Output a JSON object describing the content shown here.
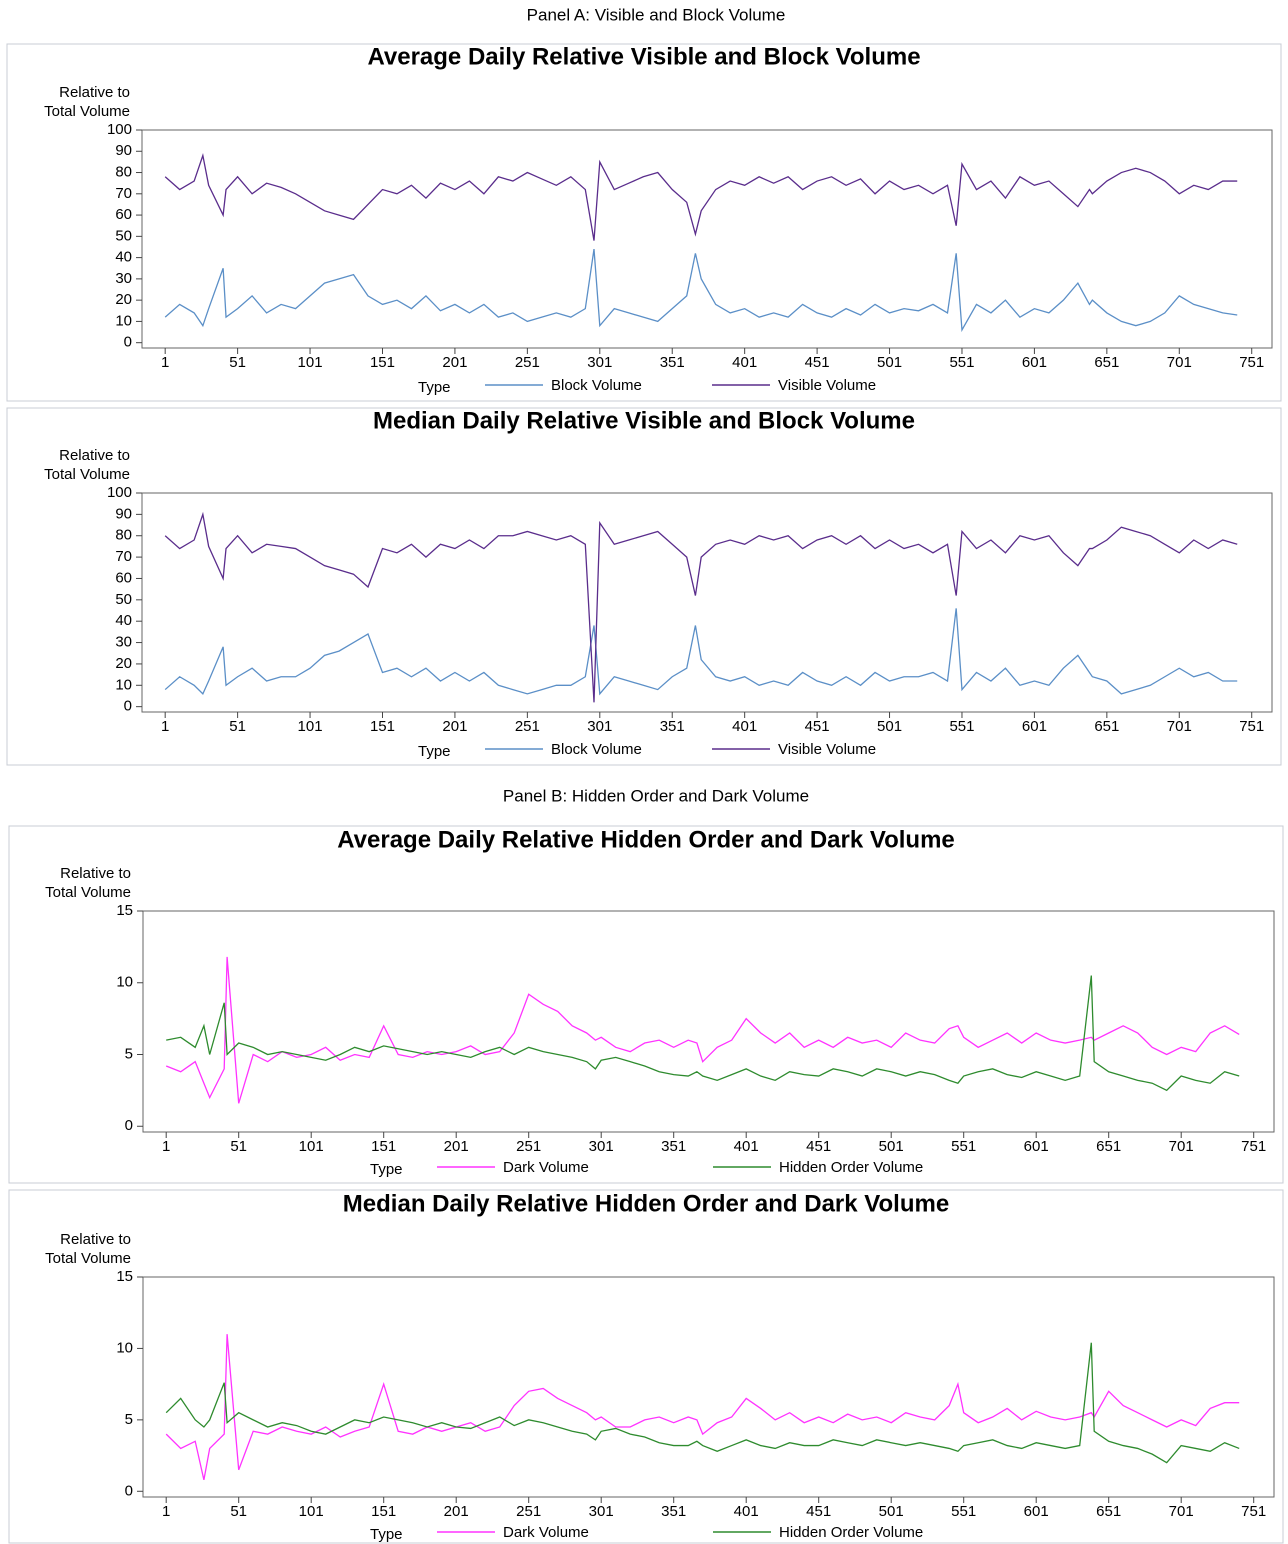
{
  "panel_titles": [
    "Panel A: Visible and Block Volume",
    "Panel B: Hidden Order and Dark Volume"
  ],
  "chart_data": [
    {
      "type": "line",
      "title": "Average Daily Relative Visible and Block Volume",
      "ylabel_lines": [
        "Relative to",
        "Total Volume"
      ],
      "legend_title": "Type",
      "x": [
        1,
        11,
        21,
        27,
        31,
        41,
        43,
        51,
        61,
        71,
        81,
        91,
        101,
        111,
        121,
        131,
        141,
        151,
        161,
        171,
        181,
        191,
        201,
        211,
        221,
        231,
        241,
        251,
        261,
        271,
        281,
        291,
        297,
        301,
        311,
        321,
        331,
        341,
        351,
        361,
        367,
        371,
        381,
        391,
        401,
        411,
        421,
        431,
        441,
        451,
        461,
        471,
        481,
        491,
        501,
        511,
        521,
        531,
        541,
        547,
        551,
        561,
        571,
        581,
        591,
        601,
        611,
        621,
        631,
        639,
        641,
        651,
        661,
        671,
        681,
        691,
        701,
        711,
        721,
        731,
        741
      ],
      "xlim": [
        -15,
        765
      ],
      "xticks": [
        1,
        51,
        101,
        151,
        201,
        251,
        301,
        351,
        401,
        451,
        501,
        551,
        601,
        651,
        701,
        751
      ],
      "ylim": [
        -2.5,
        100
      ],
      "yticks": [
        0,
        10,
        20,
        30,
        40,
        50,
        60,
        70,
        80,
        90,
        100
      ],
      "series": [
        {
          "name": "Block Volume",
          "color": "#5b8fc7",
          "values": [
            12,
            18,
            14,
            8,
            16,
            35,
            12,
            16,
            22,
            14,
            18,
            16,
            22,
            28,
            30,
            32,
            22,
            18,
            20,
            16,
            22,
            15,
            18,
            14,
            18,
            12,
            14,
            10,
            12,
            14,
            12,
            16,
            44,
            8,
            16,
            14,
            12,
            10,
            16,
            22,
            42,
            30,
            18,
            14,
            16,
            12,
            14,
            12,
            18,
            14,
            12,
            16,
            13,
            18,
            14,
            16,
            15,
            18,
            14,
            42,
            6,
            18,
            14,
            20,
            12,
            16,
            14,
            20,
            28,
            18,
            20,
            14,
            10,
            8,
            10,
            14,
            22,
            18,
            16,
            14,
            13
          ]
        },
        {
          "name": "Visible Volume",
          "color": "#5a2d8c",
          "values": [
            78,
            72,
            76,
            88,
            74,
            60,
            72,
            78,
            70,
            75,
            73,
            70,
            66,
            62,
            60,
            58,
            65,
            72,
            70,
            74,
            68,
            75,
            72,
            76,
            70,
            78,
            76,
            80,
            77,
            74,
            78,
            72,
            48,
            85,
            72,
            75,
            78,
            80,
            72,
            66,
            51,
            62,
            72,
            76,
            74,
            78,
            75,
            78,
            72,
            76,
            78,
            74,
            77,
            70,
            76,
            72,
            74,
            70,
            74,
            55,
            84,
            72,
            76,
            68,
            78,
            74,
            76,
            70,
            64,
            72,
            70,
            76,
            80,
            82,
            80,
            76,
            70,
            74,
            72,
            76,
            76
          ]
        }
      ]
    },
    {
      "type": "line",
      "title": "Median Daily Relative Visible and Block Volume",
      "ylabel_lines": [
        "Relative to",
        "Total Volume"
      ],
      "legend_title": "Type",
      "x": [
        1,
        11,
        21,
        27,
        31,
        41,
        43,
        51,
        61,
        71,
        81,
        91,
        101,
        111,
        121,
        131,
        141,
        151,
        161,
        171,
        181,
        191,
        201,
        211,
        221,
        231,
        241,
        251,
        261,
        271,
        281,
        291,
        297,
        301,
        311,
        321,
        331,
        341,
        351,
        361,
        367,
        371,
        381,
        391,
        401,
        411,
        421,
        431,
        441,
        451,
        461,
        471,
        481,
        491,
        501,
        511,
        521,
        531,
        541,
        547,
        551,
        561,
        571,
        581,
        591,
        601,
        611,
        621,
        631,
        639,
        641,
        651,
        661,
        671,
        681,
        691,
        701,
        711,
        721,
        731,
        741
      ],
      "xlim": [
        -15,
        765
      ],
      "xticks": [
        1,
        51,
        101,
        151,
        201,
        251,
        301,
        351,
        401,
        451,
        501,
        551,
        601,
        651,
        701,
        751
      ],
      "ylim": [
        -2.5,
        100
      ],
      "yticks": [
        0,
        10,
        20,
        30,
        40,
        50,
        60,
        70,
        80,
        90,
        100
      ],
      "series": [
        {
          "name": "Block Volume",
          "color": "#5b8fc7",
          "values": [
            8,
            14,
            10,
            6,
            12,
            28,
            10,
            14,
            18,
            12,
            14,
            14,
            18,
            24,
            26,
            30,
            34,
            16,
            18,
            14,
            18,
            12,
            16,
            12,
            16,
            10,
            8,
            6,
            8,
            10,
            10,
            14,
            38,
            6,
            14,
            12,
            10,
            8,
            14,
            18,
            38,
            22,
            14,
            12,
            14,
            10,
            12,
            10,
            16,
            12,
            10,
            14,
            10,
            16,
            12,
            14,
            14,
            16,
            12,
            46,
            8,
            16,
            12,
            18,
            10,
            12,
            10,
            18,
            24,
            16,
            14,
            12,
            6,
            8,
            10,
            14,
            18,
            14,
            16,
            12,
            12
          ]
        },
        {
          "name": "Visible Volume",
          "color": "#5a2d8c",
          "values": [
            80,
            74,
            78,
            90,
            75,
            60,
            74,
            80,
            72,
            76,
            75,
            74,
            70,
            66,
            64,
            62,
            56,
            74,
            72,
            76,
            70,
            76,
            74,
            78,
            74,
            80,
            80,
            82,
            80,
            78,
            80,
            76,
            2,
            86,
            76,
            78,
            80,
            82,
            76,
            70,
            52,
            70,
            76,
            78,
            76,
            80,
            78,
            80,
            74,
            78,
            80,
            76,
            80,
            74,
            78,
            74,
            76,
            72,
            76,
            52,
            82,
            74,
            78,
            72,
            80,
            78,
            80,
            72,
            66,
            74,
            74,
            78,
            84,
            82,
            80,
            76,
            72,
            78,
            74,
            78,
            76
          ]
        }
      ]
    },
    {
      "type": "line",
      "title": "Average Daily Relative Hidden Order and Dark Volume",
      "ylabel_lines": [
        "Relative to",
        "Total Volume"
      ],
      "legend_title": "Type",
      "x": [
        1,
        11,
        21,
        27,
        31,
        41,
        43,
        51,
        61,
        71,
        81,
        91,
        101,
        111,
        121,
        131,
        141,
        151,
        161,
        171,
        181,
        191,
        201,
        211,
        221,
        231,
        241,
        251,
        261,
        271,
        281,
        291,
        297,
        301,
        311,
        321,
        331,
        341,
        351,
        361,
        367,
        371,
        381,
        391,
        401,
        411,
        421,
        431,
        441,
        451,
        461,
        471,
        481,
        491,
        501,
        511,
        521,
        531,
        541,
        547,
        551,
        561,
        571,
        581,
        591,
        601,
        611,
        621,
        631,
        639,
        641,
        651,
        661,
        671,
        681,
        691,
        701,
        711,
        721,
        731,
        741
      ],
      "xlim": [
        -15,
        765
      ],
      "xticks": [
        1,
        51,
        101,
        151,
        201,
        251,
        301,
        351,
        401,
        451,
        501,
        551,
        601,
        651,
        701,
        751
      ],
      "ylim": [
        -0.4,
        15
      ],
      "yticks": [
        0,
        5,
        10,
        15
      ],
      "series": [
        {
          "name": "Dark Volume",
          "color": "#ff33ff",
          "values": [
            4.2,
            3.8,
            4.5,
            3.0,
            2.0,
            4.0,
            11.8,
            1.6,
            5.0,
            4.5,
            5.2,
            4.8,
            5.0,
            5.5,
            4.6,
            5.0,
            4.8,
            7.0,
            5.0,
            4.8,
            5.2,
            5.0,
            5.2,
            5.6,
            5.0,
            5.2,
            6.5,
            9.2,
            8.5,
            8.0,
            7.0,
            6.5,
            6.0,
            6.2,
            5.5,
            5.2,
            5.8,
            6.0,
            5.5,
            6.0,
            5.8,
            4.5,
            5.5,
            6.0,
            7.5,
            6.5,
            5.8,
            6.5,
            5.5,
            6.0,
            5.5,
            6.2,
            5.8,
            6.0,
            5.5,
            6.5,
            6.0,
            5.8,
            6.8,
            7.0,
            6.2,
            5.5,
            6.0,
            6.5,
            5.8,
            6.5,
            6.0,
            5.8,
            6.0,
            6.2,
            6.0,
            6.5,
            7.0,
            6.5,
            5.5,
            5.0,
            5.5,
            5.2,
            6.5,
            7.0,
            6.4
          ]
        },
        {
          "name": "Hidden Order Volume",
          "color": "#2e8b2e",
          "values": [
            6.0,
            6.2,
            5.5,
            7.0,
            5.0,
            8.6,
            5.0,
            5.8,
            5.5,
            5.0,
            5.2,
            5.0,
            4.8,
            4.6,
            5.0,
            5.5,
            5.2,
            5.6,
            5.4,
            5.2,
            5.0,
            5.2,
            5.0,
            4.8,
            5.2,
            5.5,
            5.0,
            5.5,
            5.2,
            5.0,
            4.8,
            4.5,
            4.0,
            4.6,
            4.8,
            4.5,
            4.2,
            3.8,
            3.6,
            3.5,
            3.8,
            3.5,
            3.2,
            3.6,
            4.0,
            3.5,
            3.2,
            3.8,
            3.6,
            3.5,
            4.0,
            3.8,
            3.5,
            4.0,
            3.8,
            3.5,
            3.8,
            3.6,
            3.2,
            3.0,
            3.5,
            3.8,
            4.0,
            3.6,
            3.4,
            3.8,
            3.5,
            3.2,
            3.5,
            10.5,
            4.5,
            3.8,
            3.5,
            3.2,
            3.0,
            2.5,
            3.5,
            3.2,
            3.0,
            3.8,
            3.5
          ]
        }
      ]
    },
    {
      "type": "line",
      "title": "Median Daily Relative Hidden Order and Dark Volume",
      "ylabel_lines": [
        "Relative to",
        "Total Volume"
      ],
      "legend_title": "Type",
      "x": [
        1,
        11,
        21,
        27,
        31,
        41,
        43,
        51,
        61,
        71,
        81,
        91,
        101,
        111,
        121,
        131,
        141,
        151,
        161,
        171,
        181,
        191,
        201,
        211,
        221,
        231,
        241,
        251,
        261,
        271,
        281,
        291,
        297,
        301,
        311,
        321,
        331,
        341,
        351,
        361,
        367,
        371,
        381,
        391,
        401,
        411,
        421,
        431,
        441,
        451,
        461,
        471,
        481,
        491,
        501,
        511,
        521,
        531,
        541,
        547,
        551,
        561,
        571,
        581,
        591,
        601,
        611,
        621,
        631,
        639,
        641,
        651,
        661,
        671,
        681,
        691,
        701,
        711,
        721,
        731,
        741
      ],
      "xlim": [
        -15,
        765
      ],
      "xticks": [
        1,
        51,
        101,
        151,
        201,
        251,
        301,
        351,
        401,
        451,
        501,
        551,
        601,
        651,
        701,
        751
      ],
      "ylim": [
        -0.4,
        15
      ],
      "yticks": [
        0,
        5,
        10,
        15
      ],
      "series": [
        {
          "name": "Dark Volume",
          "color": "#ff33ff",
          "values": [
            4.0,
            3.0,
            3.5,
            0.8,
            3.0,
            4.0,
            11.0,
            1.5,
            4.2,
            4.0,
            4.5,
            4.2,
            4.0,
            4.5,
            3.8,
            4.2,
            4.5,
            7.5,
            4.2,
            4.0,
            4.5,
            4.2,
            4.5,
            4.8,
            4.2,
            4.5,
            6.0,
            7.0,
            7.2,
            6.5,
            6.0,
            5.5,
            5.0,
            5.2,
            4.5,
            4.5,
            5.0,
            5.2,
            4.8,
            5.2,
            5.0,
            4.0,
            4.8,
            5.2,
            6.5,
            5.8,
            5.0,
            5.5,
            4.8,
            5.2,
            4.8,
            5.4,
            5.0,
            5.2,
            4.8,
            5.5,
            5.2,
            5.0,
            6.0,
            7.5,
            5.5,
            4.8,
            5.2,
            5.8,
            5.0,
            5.6,
            5.2,
            5.0,
            5.2,
            5.5,
            5.2,
            7.0,
            6.0,
            5.5,
            5.0,
            4.5,
            5.0,
            4.6,
            5.8,
            6.2,
            6.2
          ]
        },
        {
          "name": "Hidden Order Volume",
          "color": "#2e8b2e",
          "values": [
            5.5,
            6.5,
            5.0,
            4.5,
            5.0,
            7.6,
            4.8,
            5.5,
            5.0,
            4.5,
            4.8,
            4.6,
            4.2,
            4.0,
            4.5,
            5.0,
            4.8,
            5.2,
            5.0,
            4.8,
            4.5,
            4.8,
            4.5,
            4.4,
            4.8,
            5.2,
            4.6,
            5.0,
            4.8,
            4.5,
            4.2,
            4.0,
            3.6,
            4.2,
            4.4,
            4.0,
            3.8,
            3.4,
            3.2,
            3.2,
            3.5,
            3.2,
            2.8,
            3.2,
            3.6,
            3.2,
            3.0,
            3.4,
            3.2,
            3.2,
            3.6,
            3.4,
            3.2,
            3.6,
            3.4,
            3.2,
            3.4,
            3.2,
            3.0,
            2.8,
            3.2,
            3.4,
            3.6,
            3.2,
            3.0,
            3.4,
            3.2,
            3.0,
            3.2,
            10.4,
            4.2,
            3.5,
            3.2,
            3.0,
            2.6,
            2.0,
            3.2,
            3.0,
            2.8,
            3.4,
            3.0
          ]
        }
      ]
    }
  ]
}
